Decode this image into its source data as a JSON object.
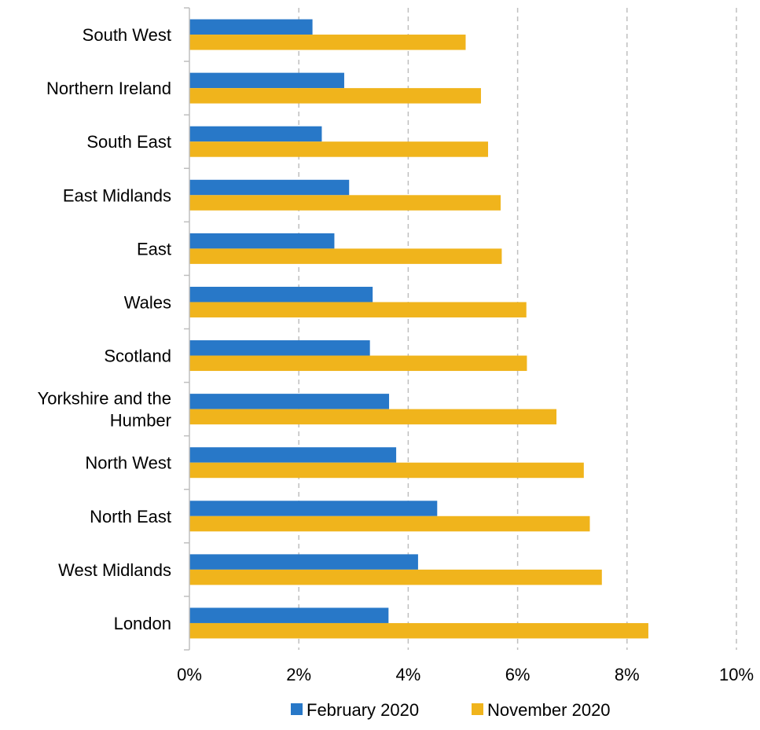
{
  "chart_data": {
    "type": "bar",
    "orientation": "horizontal",
    "categories": [
      [
        "South West"
      ],
      [
        "Northern Ireland"
      ],
      [
        "South East"
      ],
      [
        "East Midlands"
      ],
      [
        "East"
      ],
      [
        "Wales"
      ],
      [
        "Scotland"
      ],
      [
        "Yorkshire and the",
        "Humber"
      ],
      [
        "North West"
      ],
      [
        "North East"
      ],
      [
        "West Midlands"
      ],
      [
        "London"
      ]
    ],
    "series": [
      {
        "name": "February 2020",
        "color": "#2878C8",
        "values": [
          2.25,
          2.83,
          2.42,
          2.92,
          2.65,
          3.35,
          3.3,
          3.65,
          3.78,
          4.53,
          4.18,
          3.64
        ]
      },
      {
        "name": "November 2020",
        "color": "#F0B41C",
        "values": [
          5.05,
          5.33,
          5.46,
          5.69,
          5.71,
          6.16,
          6.17,
          6.71,
          7.21,
          7.32,
          7.54,
          8.39
        ]
      }
    ],
    "xlim": [
      0,
      10
    ],
    "x_ticks": [
      "0%",
      "2%",
      "4%",
      "6%",
      "8%",
      "10%"
    ],
    "x_tick_values": [
      0,
      2,
      4,
      6,
      8,
      10
    ],
    "grid": "vertical-dashed",
    "legend_position": "bottom"
  }
}
